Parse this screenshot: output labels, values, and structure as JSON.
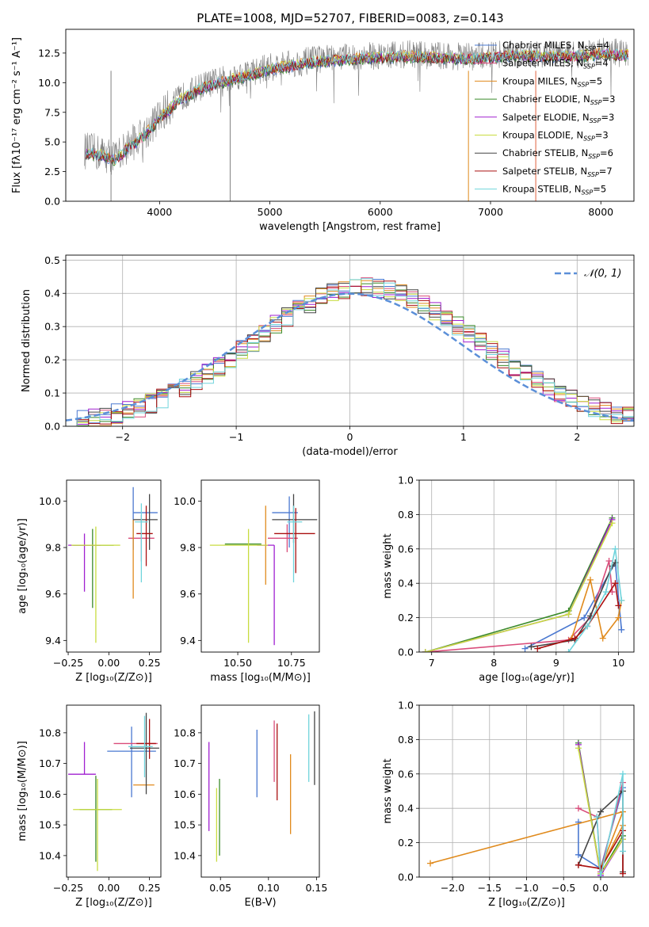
{
  "figure": {
    "title": "PLATE=1008, MJD=52707, FIBERID=0083, z=0.143"
  },
  "models": [
    {
      "name": "Chabrier MILES",
      "nssp": "4",
      "color": "#4a78d0"
    },
    {
      "name": "Salpeter MILES",
      "nssp": "4",
      "color": "#d94c7a"
    },
    {
      "name": "Kroupa MILES",
      "nssp": "5",
      "color": "#e08a1c"
    },
    {
      "name": "Chabrier ELODIE",
      "nssp": "3",
      "color": "#3a8a2a"
    },
    {
      "name": "Salpeter ELODIE",
      "nssp": "3",
      "color": "#a020d0"
    },
    {
      "name": "Kroupa ELODIE",
      "nssp": "3",
      "color": "#c8dc40"
    },
    {
      "name": "Chabrier STELIB",
      "nssp": "6",
      "color": "#444444"
    },
    {
      "name": "Salpeter STELIB",
      "nssp": "7",
      "color": "#aa1010"
    },
    {
      "name": "Kroupa STELIB",
      "nssp": "5",
      "color": "#70d4dc"
    }
  ],
  "legend_nssp_prefix": "N",
  "legend_nssp_sub": "SSP",
  "chart_data": [
    {
      "id": "spectrum",
      "type": "line",
      "xlabel": "wavelength [Angstrom, rest frame]",
      "ylabel": "Flux [fλ10⁻¹⁷ erg cm⁻² s⁻¹ A⁻¹]",
      "xlim": [
        3150,
        8300
      ],
      "ylim": [
        0,
        14.5
      ],
      "xticks": [
        4000,
        5000,
        6000,
        7000,
        8000
      ],
      "yticks": [
        0.0,
        2.5,
        5.0,
        7.5,
        10.0,
        12.5
      ],
      "continuum": [
        [
          3300,
          4.3
        ],
        [
          3500,
          4.0
        ],
        [
          3600,
          3.6
        ],
        [
          3700,
          4.6
        ],
        [
          3850,
          5.6
        ],
        [
          3950,
          6.6
        ],
        [
          4050,
          7.6
        ],
        [
          4200,
          8.8
        ],
        [
          4400,
          9.8
        ],
        [
          4600,
          10.3
        ],
        [
          4800,
          10.8
        ],
        [
          5000,
          11.3
        ],
        [
          5200,
          11.6
        ],
        [
          5400,
          11.9
        ],
        [
          5600,
          12.1
        ],
        [
          5800,
          12.2
        ],
        [
          6000,
          12.3
        ],
        [
          6200,
          12.4
        ],
        [
          6500,
          12.3
        ],
        [
          6800,
          12.2
        ],
        [
          7000,
          12.3
        ],
        [
          7200,
          12.5
        ],
        [
          7500,
          12.4
        ],
        [
          7800,
          12.4
        ],
        [
          8000,
          12.6
        ],
        [
          8200,
          12.5
        ]
      ],
      "legend_position": "upper right"
    },
    {
      "id": "residual-histogram",
      "type": "bar",
      "xlabel": "(data-model)/error",
      "ylabel": "Normed distribution",
      "xlim": [
        -2.5,
        2.5
      ],
      "ylim": [
        0,
        0.515
      ],
      "xticks": [
        -2,
        -1,
        0,
        1,
        2
      ],
      "yticks": [
        0.0,
        0.1,
        0.2,
        0.3,
        0.4,
        0.5
      ],
      "bin_width": 0.1,
      "reference_curve": "N(0,1)",
      "reference_label": "𝒩(0, 1)",
      "legend_position": "upper right",
      "grid": true
    },
    {
      "id": "age-vs-Z",
      "type": "scatter",
      "xlabel": "Z [log₁₀(Z/Z⊙)]",
      "ylabel": "age  [log₁₀(age/yr)]",
      "xlim": [
        -0.26,
        0.32
      ],
      "ylim": [
        9.35,
        10.09
      ],
      "xticks": [
        -0.25,
        0.0,
        0.25
      ],
      "yticks": [
        9.4,
        9.6,
        9.8,
        10.0
      ],
      "points": [
        {
          "model": 0,
          "x": 0.15,
          "y": 9.95,
          "xerr": [
            0.0,
            0.15
          ],
          "yerr": [
            0.16,
            0.11
          ]
        },
        {
          "model": 1,
          "x": 0.2,
          "y": 9.84,
          "xerr": [
            0.08,
            0.08
          ],
          "yerr": [
            0.1,
            0.1
          ]
        },
        {
          "model": 2,
          "x": 0.15,
          "y": 9.82,
          "xerr": [
            0.0,
            0.0
          ],
          "yerr": [
            0.24,
            0.1
          ]
        },
        {
          "model": 3,
          "x": -0.1,
          "y": 9.81,
          "xerr": [
            0.12,
            0.13
          ],
          "yerr": [
            0.27,
            0.07
          ]
        },
        {
          "model": 4,
          "x": -0.15,
          "y": 9.81,
          "xerr": [
            0.1,
            0.1
          ],
          "yerr": [
            0.2,
            0.05
          ]
        },
        {
          "model": 5,
          "x": -0.08,
          "y": 9.81,
          "xerr": [
            0.15,
            0.15
          ],
          "yerr": [
            0.42,
            0.08
          ]
        },
        {
          "model": 6,
          "x": 0.25,
          "y": 9.92,
          "xerr": [
            0.1,
            0.05
          ],
          "yerr": [
            0.13,
            0.11
          ]
        },
        {
          "model": 7,
          "x": 0.23,
          "y": 9.86,
          "xerr": [
            0.06,
            0.04
          ],
          "yerr": [
            0.14,
            0.12
          ]
        },
        {
          "model": 8,
          "x": 0.2,
          "y": 9.91,
          "xerr": [
            0.04,
            0.04
          ],
          "yerr": [
            0.26,
            0.08
          ]
        }
      ]
    },
    {
      "id": "age-vs-mass",
      "type": "scatter",
      "xlabel": "mass [log₁₀(M/M⊙)]",
      "ylabel": "",
      "xlim": [
        10.33,
        10.88
      ],
      "ylim": [
        9.35,
        10.09
      ],
      "xticks": [
        10.5,
        10.75
      ],
      "yticks": [
        9.4,
        9.6,
        9.8,
        10.0
      ],
      "points": [
        {
          "model": 0,
          "x": 10.74,
          "y": 9.95,
          "xerr": [
            0.08,
            0.04
          ],
          "yerr": [
            0.15,
            0.07
          ]
        },
        {
          "model": 1,
          "x": 10.73,
          "y": 9.84,
          "xerr": [
            0.09,
            0.05
          ],
          "yerr": [
            0.06,
            0.06
          ]
        },
        {
          "model": 2,
          "x": 10.63,
          "y": 9.82,
          "xerr": [
            0.0,
            0.0
          ],
          "yerr": [
            0.18,
            0.16
          ]
        },
        {
          "model": 3,
          "x": 10.54,
          "y": 9.815,
          "xerr": [
            0.1,
            0.07
          ],
          "yerr": [
            0.0,
            0.0
          ]
        },
        {
          "model": 4,
          "x": 10.67,
          "y": 9.81,
          "xerr": [
            0.08,
            0.0
          ],
          "yerr": [
            0.43,
            0.0
          ]
        },
        {
          "model": 5,
          "x": 10.55,
          "y": 9.81,
          "xerr": [
            0.18,
            0.09
          ],
          "yerr": [
            0.42,
            0.07
          ]
        },
        {
          "model": 6,
          "x": 10.76,
          "y": 9.92,
          "xerr": [
            0.1,
            0.11
          ],
          "yerr": [
            0.1,
            0.11
          ]
        },
        {
          "model": 7,
          "x": 10.77,
          "y": 9.86,
          "xerr": [
            0.1,
            0.09
          ],
          "yerr": [
            0.17,
            0.11
          ]
        },
        {
          "model": 8,
          "x": 10.76,
          "y": 9.91,
          "xerr": [
            0.03,
            0.04
          ],
          "yerr": [
            0.26,
            0.07
          ]
        }
      ]
    },
    {
      "id": "massweight-vs-age",
      "type": "line",
      "xlabel": "age  [log₁₀(age/yr)]",
      "ylabel": "mass weight",
      "xlim": [
        6.8,
        10.25
      ],
      "ylim": [
        0,
        1.0
      ],
      "xticks": [
        7,
        8,
        9,
        10
      ],
      "yticks": [
        0.0,
        0.2,
        0.4,
        0.6,
        0.8,
        1.0
      ],
      "grid": true,
      "series": [
        {
          "model": 0,
          "x": [
            8.5,
            9.45,
            9.95,
            10.05
          ],
          "y": [
            0.02,
            0.2,
            0.52,
            0.13
          ]
        },
        {
          "model": 1,
          "x": [
            6.9,
            9.2,
            9.55,
            9.85,
            9.9
          ],
          "y": [
            0.0,
            0.07,
            0.2,
            0.53,
            0.35
          ]
        },
        {
          "model": 2,
          "x": [
            9.25,
            9.55,
            9.75,
            10.0,
            10.05
          ],
          "y": [
            0.08,
            0.42,
            0.08,
            0.2,
            0.3
          ]
        },
        {
          "model": 3,
          "x": [
            6.9,
            9.2,
            9.9
          ],
          "y": [
            0.0,
            0.24,
            0.78
          ]
        },
        {
          "model": 4,
          "x": [
            6.9,
            9.2,
            9.9
          ],
          "y": [
            0.0,
            0.22,
            0.77
          ]
        },
        {
          "model": 5,
          "x": [
            6.9,
            9.2,
            9.9
          ],
          "y": [
            0.0,
            0.22,
            0.75
          ]
        },
        {
          "model": 6,
          "x": [
            8.6,
            9.3,
            9.55,
            9.9,
            9.95
          ],
          "y": [
            0.03,
            0.07,
            0.21,
            0.5,
            0.52
          ]
        },
        {
          "model": 7,
          "x": [
            8.7,
            9.3,
            9.5,
            9.95,
            10.0
          ],
          "y": [
            0.02,
            0.08,
            0.15,
            0.4,
            0.27
          ]
        },
        {
          "model": 8,
          "x": [
            9.2,
            9.5,
            9.8,
            9.95,
            10.05
          ],
          "y": [
            0.0,
            0.15,
            0.35,
            0.6,
            0.3
          ]
        }
      ]
    },
    {
      "id": "mass-vs-Z",
      "type": "scatter",
      "xlabel": "Z [log₁₀(Z/Z⊙)]",
      "ylabel": "mass [log₁₀(M/M⊙)]",
      "xlim": [
        -0.26,
        0.32
      ],
      "ylim": [
        10.33,
        10.89
      ],
      "xticks": [
        -0.25,
        0.0,
        0.25
      ],
      "yticks": [
        10.4,
        10.5,
        10.6,
        10.7,
        10.8
      ],
      "points": [
        {
          "model": 0,
          "x": 0.14,
          "y": 10.74,
          "xerr": [
            0.15,
            0.15
          ],
          "yerr": [
            0.15,
            0.08
          ]
        },
        {
          "model": 1,
          "x": 0.18,
          "y": 10.765,
          "xerr": [
            0.15,
            0.12
          ],
          "yerr": [
            0.0,
            0.0
          ]
        },
        {
          "model": 2,
          "x": 0.2,
          "y": 10.63,
          "xerr": [
            0.05,
            0.08
          ],
          "yerr": [
            0.0,
            0.0
          ]
        },
        {
          "model": 3,
          "x": -0.08,
          "y": 10.55,
          "xerr": [
            0.1,
            0.1
          ],
          "yerr": [
            0.17,
            0.11
          ]
        },
        {
          "model": 4,
          "x": -0.15,
          "y": 10.665,
          "xerr": [
            0.1,
            0.07
          ],
          "yerr": [
            0.0,
            0.105
          ]
        },
        {
          "model": 5,
          "x": -0.07,
          "y": 10.55,
          "xerr": [
            0.15,
            0.15
          ],
          "yerr": [
            0.2,
            0.1
          ]
        },
        {
          "model": 6,
          "x": 0.23,
          "y": 10.75,
          "xerr": [
            0.1,
            0.08
          ],
          "yerr": [
            0.15,
            0.115
          ]
        },
        {
          "model": 7,
          "x": 0.25,
          "y": 10.765,
          "xerr": [
            0.08,
            0.04
          ],
          "yerr": [
            0.05,
            0.08
          ]
        },
        {
          "model": 8,
          "x": 0.22,
          "y": 10.755,
          "xerr": [
            0.1,
            0.05
          ],
          "yerr": [
            0.1,
            0.1
          ]
        }
      ]
    },
    {
      "id": "mass-vs-EBV",
      "type": "scatter",
      "xlabel": "E(B-V)",
      "ylabel": "",
      "xlim": [
        0.03,
        0.153
      ],
      "ylim": [
        10.33,
        10.89
      ],
      "xticks": [
        0.05,
        0.1,
        0.15
      ],
      "yticks": [
        10.4,
        10.5,
        10.6,
        10.7,
        10.8
      ],
      "points": [
        {
          "model": 0,
          "x": 0.088,
          "y": 10.7,
          "xerr": [
            0,
            0
          ],
          "yerr": [
            0.11,
            0.11
          ]
        },
        {
          "model": 1,
          "x": 0.106,
          "y": 10.76,
          "xerr": [
            0,
            0
          ],
          "yerr": [
            0.12,
            0.08
          ]
        },
        {
          "model": 2,
          "x": 0.123,
          "y": 10.6,
          "xerr": [
            0,
            0
          ],
          "yerr": [
            0.13,
            0.13
          ]
        },
        {
          "model": 3,
          "x": 0.049,
          "y": 10.55,
          "xerr": [
            0,
            0
          ],
          "yerr": [
            0.15,
            0.1
          ]
        },
        {
          "model": 4,
          "x": 0.038,
          "y": 10.62,
          "xerr": [
            0,
            0
          ],
          "yerr": [
            0.14,
            0.15
          ]
        },
        {
          "model": 5,
          "x": 0.046,
          "y": 10.53,
          "xerr": [
            0,
            0
          ],
          "yerr": [
            0.15,
            0.09
          ]
        },
        {
          "model": 6,
          "x": 0.148,
          "y": 10.75,
          "xerr": [
            0,
            0
          ],
          "yerr": [
            0.12,
            0.12
          ]
        },
        {
          "model": 7,
          "x": 0.109,
          "y": 10.73,
          "xerr": [
            0,
            0
          ],
          "yerr": [
            0.15,
            0.1
          ]
        },
        {
          "model": 8,
          "x": 0.142,
          "y": 10.75,
          "xerr": [
            0,
            0
          ],
          "yerr": [
            0.11,
            0.11
          ]
        }
      ]
    },
    {
      "id": "massweight-vs-Z",
      "type": "line",
      "xlabel": "Z [log₁₀(Z/Z⊙)]",
      "ylabel": "mass weight",
      "xlim": [
        -2.45,
        0.45
      ],
      "ylim": [
        0,
        1.0
      ],
      "xticks": [
        -2.0,
        -1.5,
        -1.0,
        -0.5,
        0.0
      ],
      "yticks": [
        0.0,
        0.2,
        0.4,
        0.6,
        0.8,
        1.0
      ],
      "grid": true,
      "series": [
        {
          "model": 0,
          "x": [
            -0.3,
            -0.3,
            0.0,
            0.3
          ],
          "y": [
            0.32,
            0.13,
            0.05,
            0.52
          ]
        },
        {
          "model": 1,
          "x": [
            -0.3,
            -0.05,
            0.0,
            0.3
          ],
          "y": [
            0.4,
            0.35,
            0.03,
            0.55
          ]
        },
        {
          "model": 2,
          "x": [
            -2.3,
            0.3,
            0.0,
            0.3
          ],
          "y": [
            0.08,
            0.38,
            0.05,
            0.3
          ]
        },
        {
          "model": 3,
          "x": [
            -0.3,
            0.0,
            0.3
          ],
          "y": [
            0.78,
            0.02,
            0.24
          ]
        },
        {
          "model": 4,
          "x": [
            -0.3,
            0.0,
            0.3
          ],
          "y": [
            0.77,
            0.01,
            0.22
          ]
        },
        {
          "model": 5,
          "x": [
            -0.3,
            0.0,
            0.3
          ],
          "y": [
            0.75,
            0.02,
            0.22
          ]
        },
        {
          "model": 6,
          "x": [
            -0.3,
            0.0,
            0.3,
            0.3
          ],
          "y": [
            0.07,
            0.38,
            0.5,
            0.03
          ]
        },
        {
          "model": 7,
          "x": [
            -0.3,
            0.0,
            0.3,
            0.3
          ],
          "y": [
            0.07,
            0.05,
            0.27,
            0.02
          ]
        },
        {
          "model": 8,
          "x": [
            -0.05,
            0.0,
            0.3,
            0.3
          ],
          "y": [
            0.35,
            0.0,
            0.6,
            0.15
          ]
        }
      ]
    }
  ]
}
